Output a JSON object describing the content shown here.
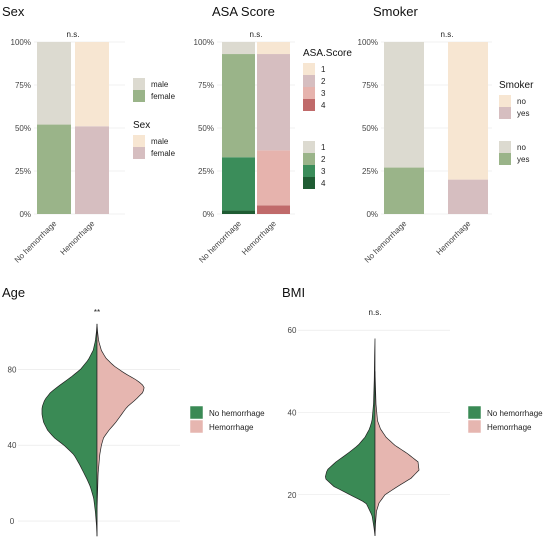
{
  "colors": {
    "no_hemorrhage_light": [
      "#dcdad0",
      "#9ab489",
      "#3b8d5a",
      "#1f5c33"
    ],
    "hemorrhage_light": [
      "#f7e6d2",
      "#d6bec0",
      "#e6b3ad",
      "#c06a6a"
    ],
    "no_hemorrhage_violin": "#3a8a55",
    "hemorrhage_violin": "#e6b6b0"
  },
  "chart_data": [
    {
      "id": "sex",
      "type": "bar",
      "stacked": true,
      "title": "Sex",
      "significance": "n.s.",
      "categories": [
        "No hemorrhage",
        "Hemorrhage"
      ],
      "y_ticks": [
        "0%",
        "25%",
        "50%",
        "75%",
        "100%"
      ],
      "ylim": [
        0,
        100
      ],
      "series": [
        {
          "group": "No hemorrhage",
          "stack": [
            {
              "label": "female",
              "value": 52
            },
            {
              "label": "male",
              "value": 48
            }
          ]
        },
        {
          "group": "Hemorrhage",
          "stack": [
            {
              "label": "female",
              "value": 51
            },
            {
              "label": "male",
              "value": 49
            }
          ]
        }
      ],
      "legends": [
        {
          "title": "",
          "items": [
            "male",
            "female"
          ]
        },
        {
          "title": "Sex",
          "items": [
            "male",
            "female"
          ]
        }
      ]
    },
    {
      "id": "asa",
      "type": "bar",
      "stacked": true,
      "title": "ASA Score",
      "significance": "n.s.",
      "categories": [
        "No hemorrhage",
        "Hemorrhage"
      ],
      "y_ticks": [
        "0%",
        "25%",
        "50%",
        "75%",
        "100%"
      ],
      "ylim": [
        0,
        100
      ],
      "series": [
        {
          "group": "No hemorrhage",
          "stack": [
            {
              "label": "4",
              "value": 2
            },
            {
              "label": "3",
              "value": 31
            },
            {
              "label": "2",
              "value": 60
            },
            {
              "label": "1",
              "value": 7
            }
          ]
        },
        {
          "group": "Hemorrhage",
          "stack": [
            {
              "label": "4",
              "value": 5
            },
            {
              "label": "3",
              "value": 32
            },
            {
              "label": "2",
              "value": 56
            },
            {
              "label": "1",
              "value": 7
            }
          ]
        }
      ],
      "legends": [
        {
          "title": "ASA.Score",
          "items": [
            "1",
            "2",
            "3",
            "4"
          ]
        },
        {
          "title": "",
          "items": [
            "1",
            "2",
            "3",
            "4"
          ]
        }
      ]
    },
    {
      "id": "smoker",
      "type": "bar",
      "stacked": true,
      "title": "Smoker",
      "significance": "n.s.",
      "categories": [
        "No hemorrhage",
        "Hemorrhage"
      ],
      "y_ticks": [
        "0%",
        "25%",
        "50%",
        "75%",
        "100%"
      ],
      "ylim": [
        0,
        100
      ],
      "series": [
        {
          "group": "No hemorrhage",
          "stack": [
            {
              "label": "yes",
              "value": 27
            },
            {
              "label": "no",
              "value": 73
            }
          ]
        },
        {
          "group": "Hemorrhage",
          "stack": [
            {
              "label": "yes",
              "value": 20
            },
            {
              "label": "no",
              "value": 80
            }
          ]
        }
      ],
      "legends": [
        {
          "title": "Smoker",
          "items": [
            "no",
            "yes"
          ]
        },
        {
          "title": "",
          "items": [
            "no",
            "yes"
          ]
        }
      ]
    },
    {
      "id": "age",
      "type": "violin",
      "split": true,
      "title": "Age",
      "significance": "**",
      "ylim": [
        -10,
        105
      ],
      "y_ticks": [
        0,
        40,
        80
      ],
      "left": {
        "name": "No hemorrhage",
        "points": [
          [
            -8,
            0
          ],
          [
            -2,
            0.01
          ],
          [
            5,
            0.03
          ],
          [
            12,
            0.06
          ],
          [
            18,
            0.12
          ],
          [
            22,
            0.18
          ],
          [
            26,
            0.25
          ],
          [
            30,
            0.32
          ],
          [
            35,
            0.42
          ],
          [
            40,
            0.6
          ],
          [
            44,
            0.78
          ],
          [
            48,
            0.9
          ],
          [
            52,
            0.97
          ],
          [
            56,
            1.0
          ],
          [
            60,
            1.0
          ],
          [
            64,
            0.95
          ],
          [
            68,
            0.84
          ],
          [
            72,
            0.66
          ],
          [
            76,
            0.47
          ],
          [
            80,
            0.3
          ],
          [
            85,
            0.16
          ],
          [
            90,
            0.07
          ],
          [
            95,
            0.03
          ],
          [
            100,
            0.01
          ],
          [
            104,
            0
          ]
        ]
      },
      "right": {
        "name": "Hemorrhage",
        "points": [
          [
            -8,
            0
          ],
          [
            5,
            0
          ],
          [
            15,
            0.01
          ],
          [
            25,
            0.02
          ],
          [
            35,
            0.05
          ],
          [
            40,
            0.08
          ],
          [
            44,
            0.12
          ],
          [
            48,
            0.22
          ],
          [
            52,
            0.34
          ],
          [
            56,
            0.44
          ],
          [
            60,
            0.54
          ],
          [
            64,
            0.7
          ],
          [
            68,
            0.84
          ],
          [
            71,
            0.86
          ],
          [
            74,
            0.74
          ],
          [
            78,
            0.5
          ],
          [
            82,
            0.3
          ],
          [
            86,
            0.16
          ],
          [
            90,
            0.08
          ],
          [
            95,
            0.03
          ],
          [
            100,
            0.01
          ],
          [
            104,
            0
          ]
        ]
      },
      "legend": {
        "items": [
          "No hemorrhage",
          "Hemorrhage"
        ]
      }
    },
    {
      "id": "bmi",
      "type": "violin",
      "split": true,
      "title": "BMI",
      "significance": "n.s.",
      "ylim": [
        9,
        62
      ],
      "y_ticks": [
        20,
        40,
        60
      ],
      "left": {
        "name": "No hemorrhage",
        "points": [
          [
            10,
            0
          ],
          [
            12,
            0.02
          ],
          [
            15,
            0.06
          ],
          [
            18,
            0.18
          ],
          [
            20,
            0.5
          ],
          [
            22,
            0.82
          ],
          [
            24,
            1.0
          ],
          [
            26,
            0.96
          ],
          [
            28,
            0.78
          ],
          [
            30,
            0.55
          ],
          [
            32,
            0.34
          ],
          [
            34,
            0.2
          ],
          [
            36,
            0.11
          ],
          [
            38,
            0.06
          ],
          [
            42,
            0.03
          ],
          [
            48,
            0.015
          ],
          [
            54,
            0.008
          ],
          [
            58,
            0
          ]
        ]
      },
      "right": {
        "name": "Hemorrhage",
        "points": [
          [
            10,
            0
          ],
          [
            13,
            0.01
          ],
          [
            16,
            0.03
          ],
          [
            18,
            0.08
          ],
          [
            20,
            0.2
          ],
          [
            22,
            0.45
          ],
          [
            24,
            0.72
          ],
          [
            26,
            0.88
          ],
          [
            28,
            0.86
          ],
          [
            30,
            0.65
          ],
          [
            32,
            0.4
          ],
          [
            34,
            0.22
          ],
          [
            36,
            0.11
          ],
          [
            38,
            0.05
          ],
          [
            42,
            0.02
          ],
          [
            46,
            0.01
          ],
          [
            50,
            0
          ]
        ]
      },
      "legend": {
        "items": [
          "No hemorrhage",
          "Hemorrhage"
        ]
      }
    }
  ]
}
